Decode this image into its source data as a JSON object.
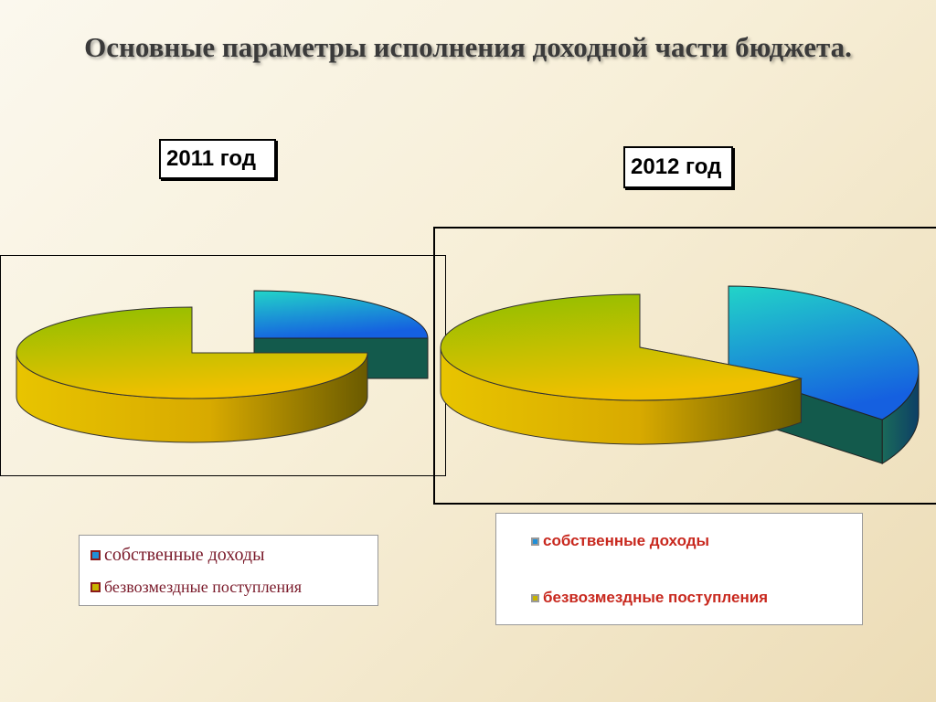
{
  "title": "Основные параметры исполнения доходной части бюджета.",
  "chart_data": [
    {
      "type": "pie",
      "title": "2011 год",
      "categories": [
        "собственные доходы",
        "безвозмездные поступления"
      ],
      "values": [
        25,
        75
      ],
      "colors": [
        "#1f8fd8",
        "#c8b400"
      ],
      "legend": [
        "собственные доходы",
        "безвозмездные поступления"
      ]
    },
    {
      "type": "pie",
      "title": "2012 год",
      "categories": [
        "собственные доходы",
        "безвозмездные поступления"
      ],
      "values": [
        35,
        65
      ],
      "colors": [
        "#1f8fd8",
        "#c8b400"
      ],
      "legend": [
        "собственные доходы",
        "безвозмездные поступления"
      ]
    }
  ]
}
